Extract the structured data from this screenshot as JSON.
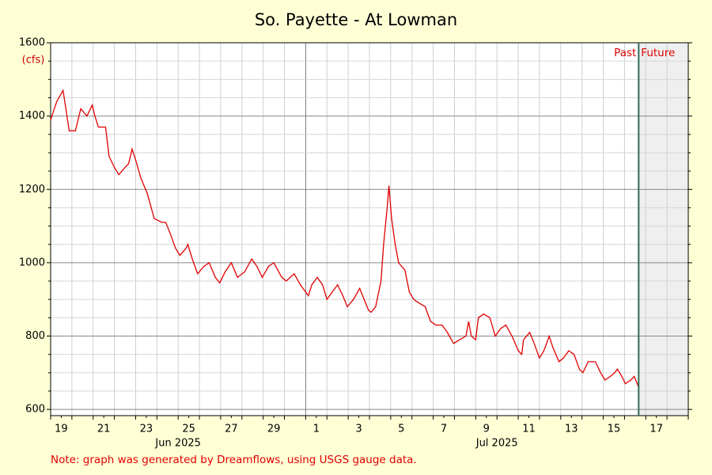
{
  "chart_data": {
    "type": "line",
    "title": "So. Payette - At Lowman",
    "y_unit": "(cfs)",
    "note": "Note: graph was generated by Dreamflows, using USGS gauge data.",
    "past_label": "Past",
    "future_label": "Future",
    "now": "2025-07-16T16:00",
    "xlim": [
      "2025-06-19T00:00",
      "2025-07-19T00:00"
    ],
    "ylim": [
      583,
      1600
    ],
    "yticks": [
      600,
      800,
      1000,
      1200,
      1400,
      1600
    ],
    "grid": true,
    "xticks": [
      {
        "value": "2025-06-19T12:00",
        "label": "19"
      },
      {
        "value": "2025-06-21T12:00",
        "label": "21"
      },
      {
        "value": "2025-06-23T12:00",
        "label": "23"
      },
      {
        "value": "2025-06-25T12:00",
        "label": "25"
      },
      {
        "value": "2025-06-27T12:00",
        "label": "27"
      },
      {
        "value": "2025-06-29T12:00",
        "label": "29"
      },
      {
        "value": "2025-07-01T12:00",
        "label": "1"
      },
      {
        "value": "2025-07-03T12:00",
        "label": "3"
      },
      {
        "value": "2025-07-05T12:00",
        "label": "5"
      },
      {
        "value": "2025-07-07T12:00",
        "label": "7"
      },
      {
        "value": "2025-07-09T12:00",
        "label": "9"
      },
      {
        "value": "2025-07-11T12:00",
        "label": "11"
      },
      {
        "value": "2025-07-13T12:00",
        "label": "13"
      },
      {
        "value": "2025-07-15T12:00",
        "label": "15"
      },
      {
        "value": "2025-07-17T12:00",
        "label": "17"
      }
    ],
    "month_labels": [
      {
        "value": "2025-06-25T00:00",
        "label": "Jun 2025"
      },
      {
        "value": "2025-07-10T00:00",
        "label": "Jul 2025"
      }
    ],
    "x": [
      "2025-06-19T00:00",
      "2025-06-19T07:00",
      "2025-06-19T14:00",
      "2025-06-19T21:00",
      "2025-06-20T04:00",
      "2025-06-20T10:00",
      "2025-06-20T17:00",
      "2025-06-20T23:00",
      "2025-06-21T02:00",
      "2025-06-21T06:00",
      "2025-06-21T14:00",
      "2025-06-21T18:00",
      "2025-06-22T00:00",
      "2025-06-22T05:00",
      "2025-06-22T12:00",
      "2025-06-22T16:00",
      "2025-06-22T20:00",
      "2025-06-23T00:00",
      "2025-06-23T06:00",
      "2025-06-23T13:00",
      "2025-06-23T21:00",
      "2025-06-24T06:00",
      "2025-06-24T10:00",
      "2025-06-24T15:00",
      "2025-06-24T21:00",
      "2025-06-25T02:00",
      "2025-06-25T09:00",
      "2025-06-25T11:00",
      "2025-06-25T16:00",
      "2025-06-25T22:00",
      "2025-06-26T05:00",
      "2025-06-26T11:00",
      "2025-06-26T18:00",
      "2025-06-26T23:00",
      "2025-06-27T05:00",
      "2025-06-27T12:00",
      "2025-06-27T19:00",
      "2025-06-28T03:00",
      "2025-06-28T11:00",
      "2025-06-28T17:00",
      "2025-06-28T23:00",
      "2025-06-29T06:00",
      "2025-06-29T12:00",
      "2025-06-29T21:00",
      "2025-06-30T02:00",
      "2025-06-30T11:00",
      "2025-06-30T18:00",
      "2025-07-01T00:00",
      "2025-07-01T03:00",
      "2025-07-01T07:00",
      "2025-07-01T13:00",
      "2025-07-01T19:00",
      "2025-07-02T00:00",
      "2025-07-02T06:00",
      "2025-07-02T12:00",
      "2025-07-02T18:00",
      "2025-07-02T23:00",
      "2025-07-03T06:00",
      "2025-07-03T13:00",
      "2025-07-03T18:00",
      "2025-07-03T23:00",
      "2025-07-04T02:00",
      "2025-07-04T07:00",
      "2025-07-04T13:00",
      "2025-07-04T16:00",
      "2025-07-04T20:00",
      "2025-07-04T22:00",
      "2025-07-05T01:00",
      "2025-07-05T05:00",
      "2025-07-05T09:00",
      "2025-07-05T16:00",
      "2025-07-05T21:00",
      "2025-07-06T02:00",
      "2025-07-06T08:00",
      "2025-07-06T15:00",
      "2025-07-06T21:00",
      "2025-07-07T03:00",
      "2025-07-07T10:00",
      "2025-07-07T16:00",
      "2025-07-07T23:00",
      "2025-07-08T06:00",
      "2025-07-08T13:00",
      "2025-07-08T16:00",
      "2025-07-08T19:00",
      "2025-07-09T00:00",
      "2025-07-09T03:00",
      "2025-07-09T09:00",
      "2025-07-09T16:00",
      "2025-07-09T22:00",
      "2025-07-10T04:00",
      "2025-07-10T10:00",
      "2025-07-10T17:00",
      "2025-07-11T00:00",
      "2025-07-11T04:00",
      "2025-07-11T06:00",
      "2025-07-11T13:00",
      "2025-07-11T18:00",
      "2025-07-12T00:00",
      "2025-07-12T05:00",
      "2025-07-12T08:00",
      "2025-07-12T11:00",
      "2025-07-12T15:00",
      "2025-07-12T22:00",
      "2025-07-13T03:00",
      "2025-07-13T09:00",
      "2025-07-13T15:00",
      "2025-07-13T21:00",
      "2025-07-14T01:00",
      "2025-07-14T07:00",
      "2025-07-14T15:00",
      "2025-07-14T21:00",
      "2025-07-15T02:00",
      "2025-07-15T08:00",
      "2025-07-15T13:00",
      "2025-07-15T16:00",
      "2025-07-15T21:00",
      "2025-07-16T01:00",
      "2025-07-16T07:00",
      "2025-07-16T11:00",
      "2025-07-16T16:00"
    ],
    "series": [
      {
        "name": "Flow",
        "color": "#e00000",
        "values": [
          1390,
          1440,
          1470,
          1360,
          1360,
          1420,
          1400,
          1430,
          1400,
          1370,
          1370,
          1290,
          1260,
          1240,
          1260,
          1270,
          1310,
          1280,
          1230,
          1190,
          1120,
          1110,
          1110,
          1080,
          1040,
          1020,
          1040,
          1050,
          1010,
          970,
          990,
          1000,
          960,
          945,
          975,
          1000,
          960,
          975,
          1010,
          990,
          960,
          990,
          1000,
          960,
          950,
          970,
          940,
          920,
          910,
          940,
          960,
          940,
          900,
          920,
          940,
          910,
          880,
          900,
          930,
          900,
          870,
          865,
          880,
          950,
          1050,
          1150,
          1210,
          1120,
          1050,
          1000,
          980,
          920,
          900,
          890,
          880,
          840,
          830,
          830,
          810,
          780,
          790,
          800,
          840,
          800,
          790,
          850,
          860,
          850,
          800,
          820,
          830,
          800,
          760,
          750,
          790,
          810,
          780,
          740,
          760,
          780,
          800,
          770,
          730,
          740,
          760,
          750,
          710,
          700,
          730,
          730,
          700,
          680,
          690,
          700,
          710,
          690,
          670,
          680,
          690,
          660
        ]
      }
    ]
  }
}
